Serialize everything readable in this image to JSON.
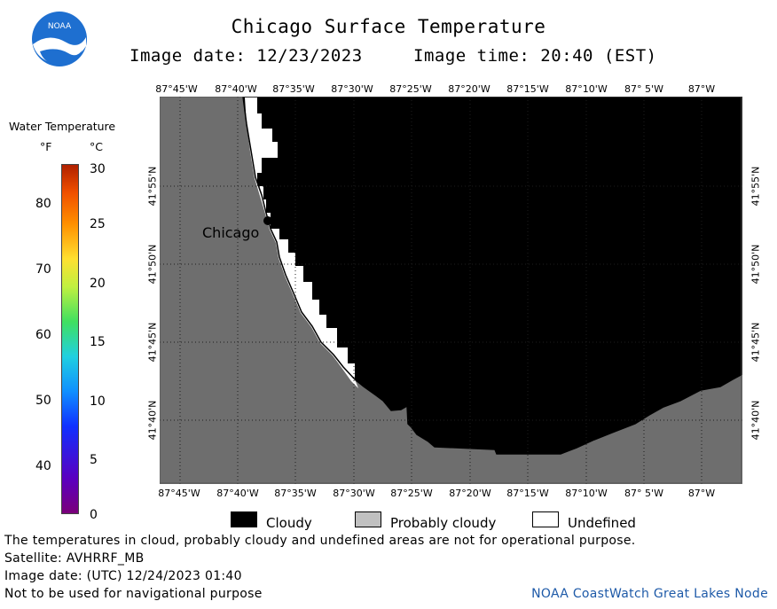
{
  "header": {
    "title": "Chicago Surface Temperature",
    "image_date": "Image date: 12/23/2023",
    "image_time": "Image time: 20:40 (EST)"
  },
  "logo": {
    "text": "NOAA"
  },
  "map": {
    "lon_labels": [
      "87°45'W",
      "87°40'W",
      "87°35'W",
      "87°30'W",
      "87°25'W",
      "87°20'W",
      "87°15'W",
      "87°10'W",
      "87° 5'W",
      "87°W"
    ],
    "lat_labels": [
      "41°55'N",
      "41°50'N",
      "41°45'N",
      "41°40'N"
    ],
    "city_label": "Chicago",
    "colors": {
      "land": "#6e6e6e",
      "cloudy": "#000000",
      "undefined": "#ffffff"
    }
  },
  "legend": {
    "title": "Water Temperature",
    "unit_f": "°F",
    "unit_c": "°C",
    "fahrenheit_ticks": [
      "80",
      "70",
      "60",
      "50",
      "40"
    ],
    "celsius_ticks": [
      "30",
      "25",
      "20",
      "15",
      "10",
      "5",
      "0"
    ]
  },
  "key": {
    "cloudy": "Cloudy",
    "probably_cloudy": "Probably cloudy",
    "undefined": "Undefined",
    "colors": {
      "cloudy": "#000000",
      "probably_cloudy": "#c0c0c0",
      "undefined": "#ffffff"
    }
  },
  "footer": {
    "note": "The temperatures in cloud, probably cloudy and undefined areas are not for operational purpose.",
    "satellite": "Satellite: AVHRRF_MB",
    "utc_date": "Image date: (UTC) 12/24/2023  01:40",
    "warning": "Not to be used for navigational purpose",
    "credit": "NOAA CoastWatch Great Lakes Node"
  }
}
